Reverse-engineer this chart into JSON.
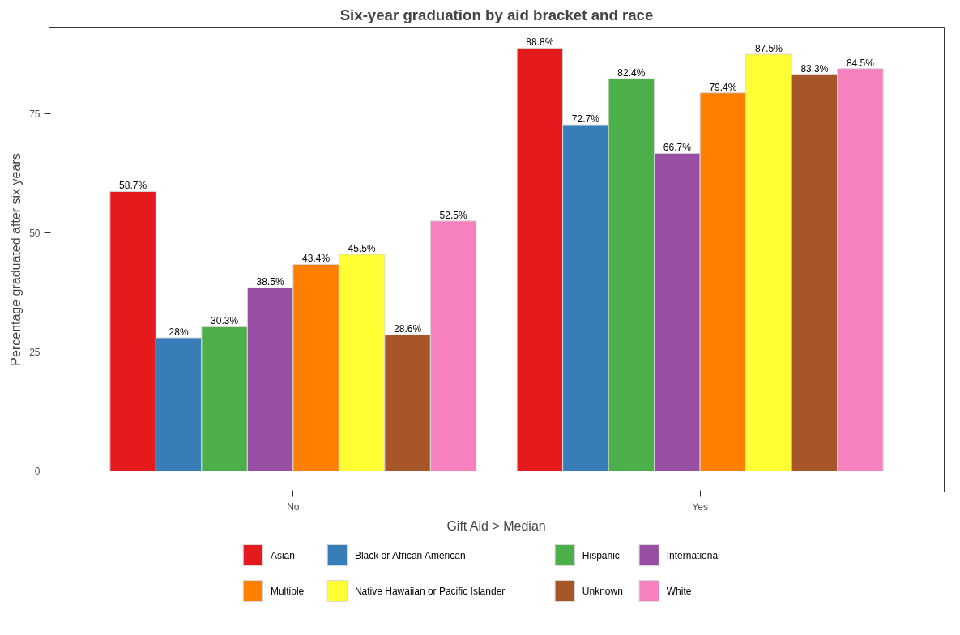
{
  "chart_data": {
    "type": "bar",
    "title": "Six-year graduation by aid bracket and race",
    "xlabel": "Gift Aid > Median",
    "ylabel": "Percentage graduated after six years",
    "categories": [
      "No",
      "Yes"
    ],
    "series": [
      {
        "name": "Asian",
        "color": "#e41a1c",
        "values": [
          58.7,
          88.8
        ],
        "value_labels": [
          "58.7%",
          "88.8%"
        ]
      },
      {
        "name": "Black or African American",
        "color": "#377eb8",
        "values": [
          28,
          72.7
        ],
        "value_labels": [
          "28%",
          "72.7%"
        ]
      },
      {
        "name": "Hispanic",
        "color": "#4daf4a",
        "values": [
          30.3,
          82.4
        ],
        "value_labels": [
          "30.3%",
          "82.4%"
        ]
      },
      {
        "name": "International",
        "color": "#984ea3",
        "values": [
          38.5,
          66.7
        ],
        "value_labels": [
          "38.5%",
          "66.7%"
        ]
      },
      {
        "name": "Multiple",
        "color": "#ff7f00",
        "values": [
          43.4,
          79.4
        ],
        "value_labels": [
          "43.4%",
          "79.4%"
        ]
      },
      {
        "name": "Native Hawaiian or Pacific Islander",
        "color": "#ffff33",
        "values": [
          45.5,
          87.5
        ],
        "value_labels": [
          "45.5%",
          "87.5%"
        ]
      },
      {
        "name": "Unknown",
        "color": "#a65628",
        "values": [
          28.6,
          83.3
        ],
        "value_labels": [
          "28.6%",
          "83.3%"
        ]
      },
      {
        "name": "White",
        "color": "#f781bf",
        "values": [
          52.5,
          84.5
        ],
        "value_labels": [
          "52.5%",
          "84.5%"
        ]
      }
    ],
    "ylim": [
      -4.4,
      93.2
    ],
    "yticks": [
      0,
      25,
      50,
      75
    ],
    "grid": false,
    "legend": "bottom"
  }
}
